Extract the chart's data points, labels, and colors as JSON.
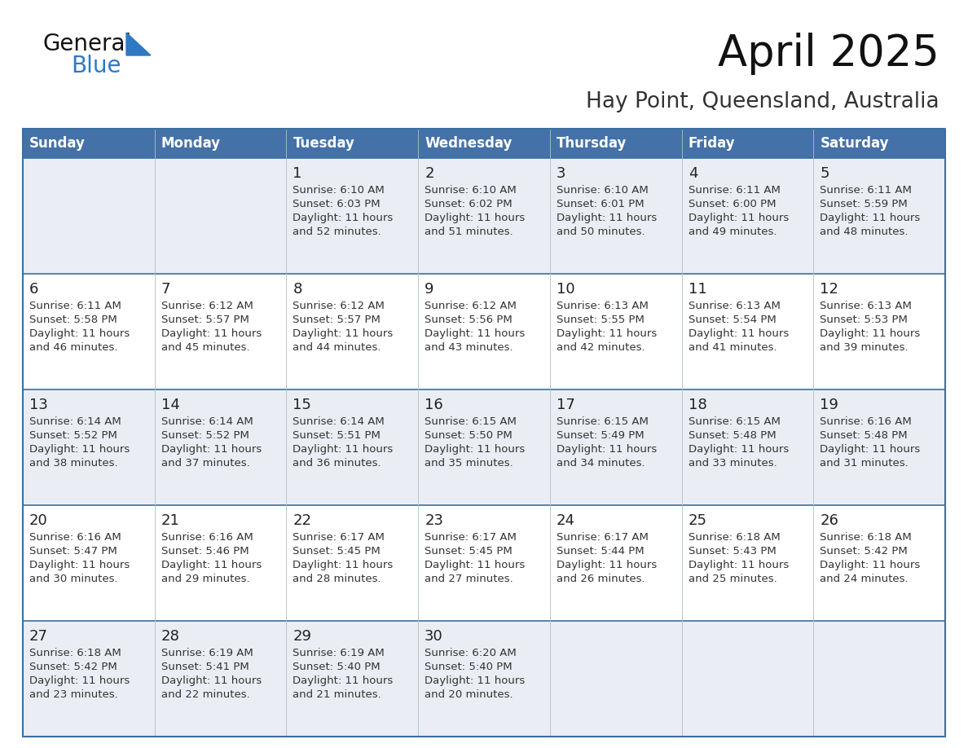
{
  "title": "April 2025",
  "subtitle": "Hay Point, Queensland, Australia",
  "days_of_week": [
    "Sunday",
    "Monday",
    "Tuesday",
    "Wednesday",
    "Thursday",
    "Friday",
    "Saturday"
  ],
  "header_bg": "#4472A8",
  "header_text": "#FFFFFF",
  "row_bg_even": "#EAEEF4",
  "row_bg_odd": "#FFFFFF",
  "cell_border_blue": "#3A6FA0",
  "cell_border_light": "#B0BEC5",
  "day_num_color": "#222222",
  "cell_text_color": "#333333",
  "title_color": "#111111",
  "subtitle_color": "#333333",
  "logo_general_color": "#111111",
  "logo_blue_color": "#2E78C4",
  "calendar": [
    [
      {
        "day": "",
        "sunrise": "",
        "sunset": "",
        "daylight": ""
      },
      {
        "day": "",
        "sunrise": "",
        "sunset": "",
        "daylight": ""
      },
      {
        "day": "1",
        "sunrise": "6:10 AM",
        "sunset": "6:03 PM",
        "daylight": "11 hours and 52 minutes."
      },
      {
        "day": "2",
        "sunrise": "6:10 AM",
        "sunset": "6:02 PM",
        "daylight": "11 hours and 51 minutes."
      },
      {
        "day": "3",
        "sunrise": "6:10 AM",
        "sunset": "6:01 PM",
        "daylight": "11 hours and 50 minutes."
      },
      {
        "day": "4",
        "sunrise": "6:11 AM",
        "sunset": "6:00 PM",
        "daylight": "11 hours and 49 minutes."
      },
      {
        "day": "5",
        "sunrise": "6:11 AM",
        "sunset": "5:59 PM",
        "daylight": "11 hours and 48 minutes."
      }
    ],
    [
      {
        "day": "6",
        "sunrise": "6:11 AM",
        "sunset": "5:58 PM",
        "daylight": "11 hours and 46 minutes."
      },
      {
        "day": "7",
        "sunrise": "6:12 AM",
        "sunset": "5:57 PM",
        "daylight": "11 hours and 45 minutes."
      },
      {
        "day": "8",
        "sunrise": "6:12 AM",
        "sunset": "5:57 PM",
        "daylight": "11 hours and 44 minutes."
      },
      {
        "day": "9",
        "sunrise": "6:12 AM",
        "sunset": "5:56 PM",
        "daylight": "11 hours and 43 minutes."
      },
      {
        "day": "10",
        "sunrise": "6:13 AM",
        "sunset": "5:55 PM",
        "daylight": "11 hours and 42 minutes."
      },
      {
        "day": "11",
        "sunrise": "6:13 AM",
        "sunset": "5:54 PM",
        "daylight": "11 hours and 41 minutes."
      },
      {
        "day": "12",
        "sunrise": "6:13 AM",
        "sunset": "5:53 PM",
        "daylight": "11 hours and 39 minutes."
      }
    ],
    [
      {
        "day": "13",
        "sunrise": "6:14 AM",
        "sunset": "5:52 PM",
        "daylight": "11 hours and 38 minutes."
      },
      {
        "day": "14",
        "sunrise": "6:14 AM",
        "sunset": "5:52 PM",
        "daylight": "11 hours and 37 minutes."
      },
      {
        "day": "15",
        "sunrise": "6:14 AM",
        "sunset": "5:51 PM",
        "daylight": "11 hours and 36 minutes."
      },
      {
        "day": "16",
        "sunrise": "6:15 AM",
        "sunset": "5:50 PM",
        "daylight": "11 hours and 35 minutes."
      },
      {
        "day": "17",
        "sunrise": "6:15 AM",
        "sunset": "5:49 PM",
        "daylight": "11 hours and 34 minutes."
      },
      {
        "day": "18",
        "sunrise": "6:15 AM",
        "sunset": "5:48 PM",
        "daylight": "11 hours and 33 minutes."
      },
      {
        "day": "19",
        "sunrise": "6:16 AM",
        "sunset": "5:48 PM",
        "daylight": "11 hours and 31 minutes."
      }
    ],
    [
      {
        "day": "20",
        "sunrise": "6:16 AM",
        "sunset": "5:47 PM",
        "daylight": "11 hours and 30 minutes."
      },
      {
        "day": "21",
        "sunrise": "6:16 AM",
        "sunset": "5:46 PM",
        "daylight": "11 hours and 29 minutes."
      },
      {
        "day": "22",
        "sunrise": "6:17 AM",
        "sunset": "5:45 PM",
        "daylight": "11 hours and 28 minutes."
      },
      {
        "day": "23",
        "sunrise": "6:17 AM",
        "sunset": "5:45 PM",
        "daylight": "11 hours and 27 minutes."
      },
      {
        "day": "24",
        "sunrise": "6:17 AM",
        "sunset": "5:44 PM",
        "daylight": "11 hours and 26 minutes."
      },
      {
        "day": "25",
        "sunrise": "6:18 AM",
        "sunset": "5:43 PM",
        "daylight": "11 hours and 25 minutes."
      },
      {
        "day": "26",
        "sunrise": "6:18 AM",
        "sunset": "5:42 PM",
        "daylight": "11 hours and 24 minutes."
      }
    ],
    [
      {
        "day": "27",
        "sunrise": "6:18 AM",
        "sunset": "5:42 PM",
        "daylight": "11 hours and 23 minutes."
      },
      {
        "day": "28",
        "sunrise": "6:19 AM",
        "sunset": "5:41 PM",
        "daylight": "11 hours and 22 minutes."
      },
      {
        "day": "29",
        "sunrise": "6:19 AM",
        "sunset": "5:40 PM",
        "daylight": "11 hours and 21 minutes."
      },
      {
        "day": "30",
        "sunrise": "6:20 AM",
        "sunset": "5:40 PM",
        "daylight": "11 hours and 20 minutes."
      },
      {
        "day": "",
        "sunrise": "",
        "sunset": "",
        "daylight": ""
      },
      {
        "day": "",
        "sunrise": "",
        "sunset": "",
        "daylight": ""
      },
      {
        "day": "",
        "sunrise": "",
        "sunset": "",
        "daylight": ""
      }
    ]
  ]
}
